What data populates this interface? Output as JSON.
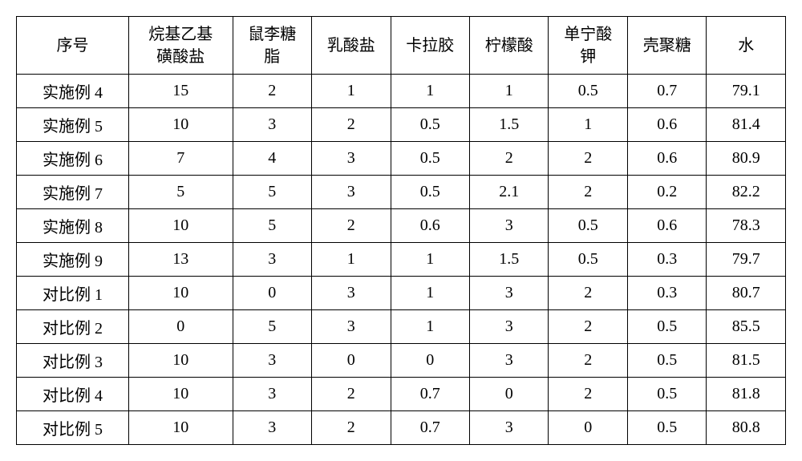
{
  "table": {
    "type": "table",
    "background_color": "#ffffff",
    "border_color": "#000000",
    "border_width": 1.5,
    "text_color": "#000000",
    "font_family": "SimSun",
    "header_fontsize": 20,
    "cell_fontsize": 20,
    "header_row_height": 72,
    "data_row_height": 36,
    "column_widths_pct": [
      13.5,
      12.5,
      9.5,
      9.5,
      9.5,
      9.5,
      9.5,
      9.5,
      9.5
    ],
    "columns": [
      "序号",
      "烷基乙基\n磺酸盐",
      "鼠李糖\n脂",
      "乳酸盐",
      "卡拉胶",
      "柠檬酸",
      "单宁酸\n钾",
      "壳聚糖",
      "水"
    ],
    "rows": [
      [
        "实施例 4",
        "15",
        "2",
        "1",
        "1",
        "1",
        "0.5",
        "0.7",
        "79.1"
      ],
      [
        "实施例 5",
        "10",
        "3",
        "2",
        "0.5",
        "1.5",
        "1",
        "0.6",
        "81.4"
      ],
      [
        "实施例 6",
        "7",
        "4",
        "3",
        "0.5",
        "2",
        "2",
        "0.6",
        "80.9"
      ],
      [
        "实施例 7",
        "5",
        "5",
        "3",
        "0.5",
        "2.1",
        "2",
        "0.2",
        "82.2"
      ],
      [
        "实施例 8",
        "10",
        "5",
        "2",
        "0.6",
        "3",
        "0.5",
        "0.6",
        "78.3"
      ],
      [
        "实施例 9",
        "13",
        "3",
        "1",
        "1",
        "1.5",
        "0.5",
        "0.3",
        "79.7"
      ],
      [
        "对比例 1",
        "10",
        "0",
        "3",
        "1",
        "3",
        "2",
        "0.3",
        "80.7"
      ],
      [
        "对比例 2",
        "0",
        "5",
        "3",
        "1",
        "3",
        "2",
        "0.5",
        "85.5"
      ],
      [
        "对比例 3",
        "10",
        "3",
        "0",
        "0",
        "3",
        "2",
        "0.5",
        "81.5"
      ],
      [
        "对比例 4",
        "10",
        "3",
        "2",
        "0.7",
        "0",
        "2",
        "0.5",
        "81.8"
      ],
      [
        "对比例 5",
        "10",
        "3",
        "2",
        "0.7",
        "3",
        "0",
        "0.5",
        "80.8"
      ]
    ]
  }
}
